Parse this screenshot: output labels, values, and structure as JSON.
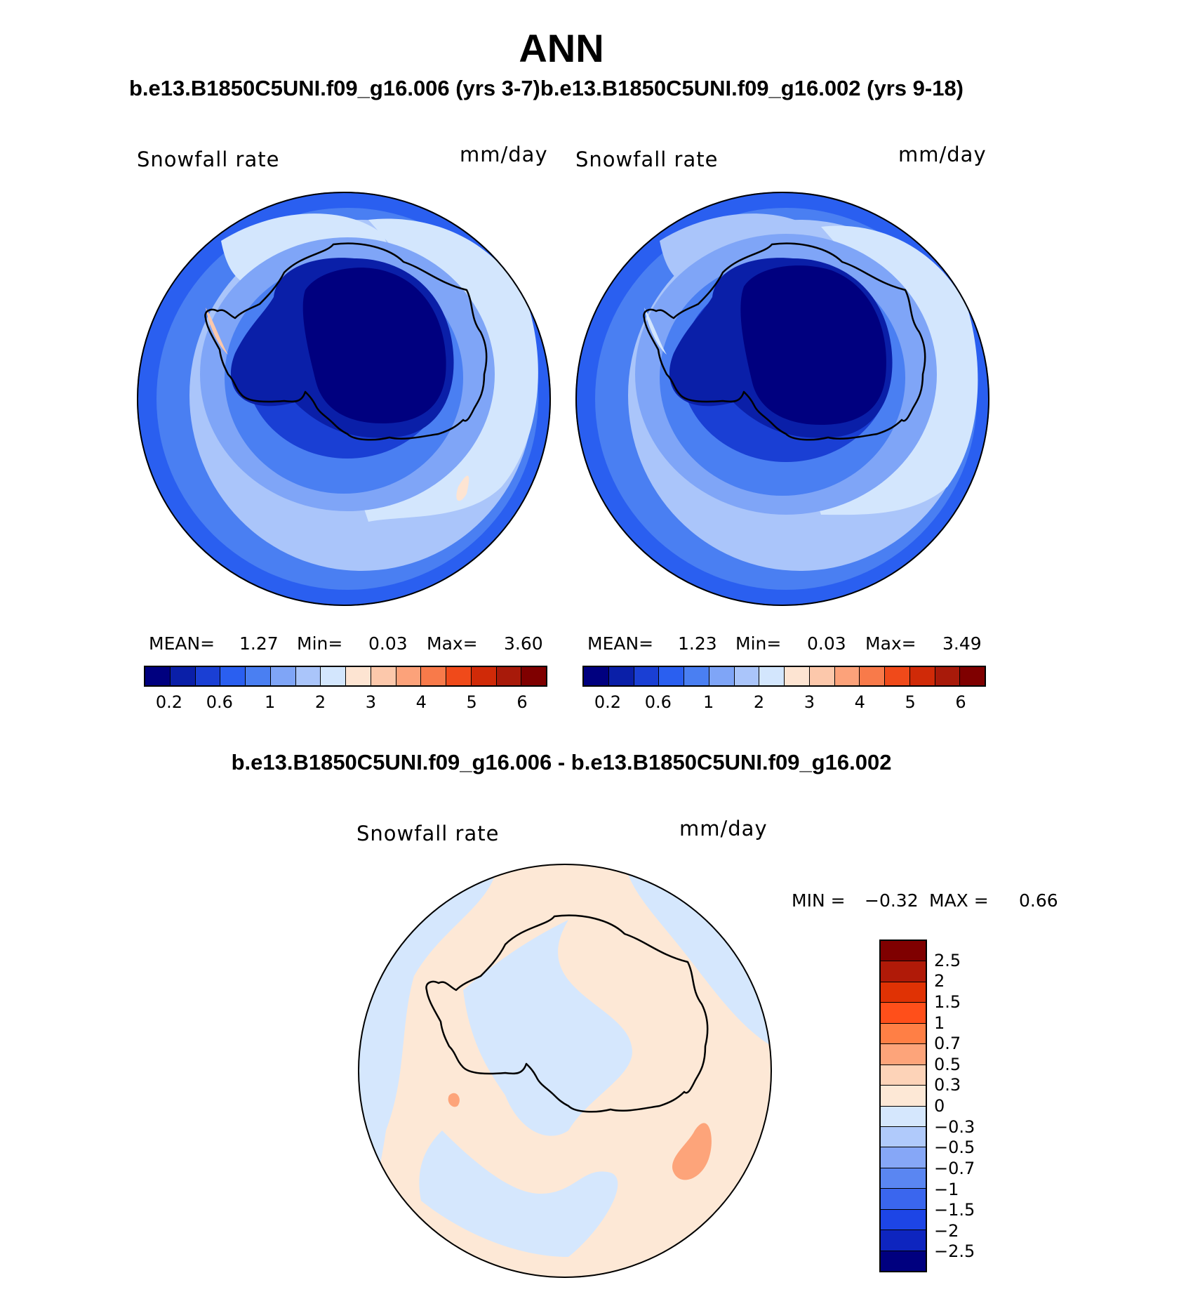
{
  "title": "ANN",
  "case_titles": "b.e13.B1850C5UNI.f09_g16.006 (yrs 3-7)b.e13.B1850C5UNI.f09_g16.002 (yrs 9-18)",
  "diff_title": "b.e13.B1850C5UNI.f09_g16.006 - b.e13.B1850C5UNI.f09_g16.002",
  "panels": [
    {
      "variable": "Snowfall rate",
      "units": "mm/day",
      "mean_label": "MEAN=",
      "mean": "1.27",
      "min_label": "Min=",
      "min": "0.03",
      "max_label": "Max=",
      "max": "3.60"
    },
    {
      "variable": "Snowfall rate",
      "units": "mm/day",
      "mean_label": "MEAN=",
      "mean": "1.23",
      "min_label": "Min=",
      "min": "0.03",
      "max_label": "Max=",
      "max": "3.49"
    }
  ],
  "diff_panel": {
    "variable": "Snowfall rate",
    "units": "mm/day",
    "min_label": "MIN =",
    "min": "−0.32",
    "max_label": "MAX =",
    "max": "0.66"
  },
  "colorbar": {
    "colors": [
      "#00007f",
      "#0a1fa8",
      "#1a3fd4",
      "#2a5ff0",
      "#4a7ff2",
      "#7fa5f7",
      "#aac5fa",
      "#d3e6fd",
      "#fde4d2",
      "#fcc8ab",
      "#fca27a",
      "#f87a4a",
      "#f04a1a",
      "#d02a08",
      "#a81a0a",
      "#7f0000"
    ],
    "tick_labels": [
      "0.2",
      "0.6",
      "1",
      "2",
      "3",
      "4",
      "5",
      "6"
    ]
  },
  "diff_colorbar": {
    "colors": [
      "#7f0000",
      "#b01a08",
      "#e03204",
      "#ff4f1a",
      "#ff7f45",
      "#fda47a",
      "#fdd3b8",
      "#fde8d6",
      "#d5e7fd",
      "#b0cafb",
      "#86a7f7",
      "#5a86f2",
      "#3a66ee",
      "#1d45e6",
      "#0e25bf",
      "#00007f"
    ],
    "tick_labels": [
      "2.5",
      "2",
      "1.5",
      "1",
      "0.7",
      "0.5",
      "0.3",
      "0",
      "−0.3",
      "−0.5",
      "−0.7",
      "−1",
      "−1.5",
      "−2",
      "−2.5"
    ]
  }
}
